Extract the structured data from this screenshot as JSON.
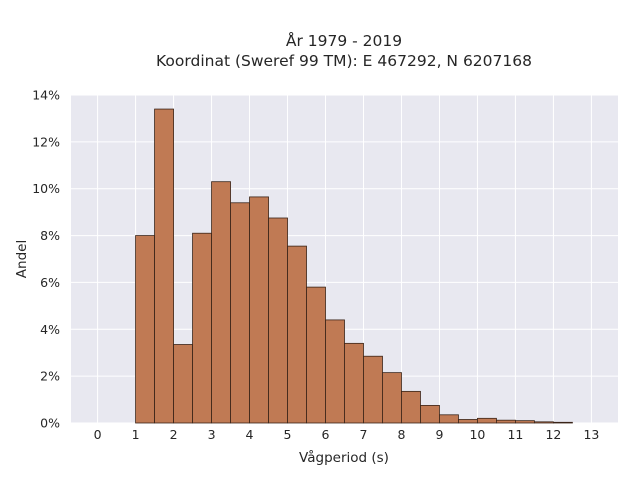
{
  "chart_data": {
    "type": "bar",
    "title": "År 1979 - 2019",
    "subtitle": "Koordinat (Sweref 99 TM): E 467292, N 6207168",
    "xlabel": "Vågperiod (s)",
    "ylabel": "Andel",
    "xlim": [
      -0.7,
      13.7
    ],
    "ylim": [
      0,
      14
    ],
    "x_ticks": [
      0,
      1,
      2,
      3,
      4,
      5,
      6,
      7,
      8,
      9,
      10,
      11,
      12,
      13
    ],
    "y_ticks": [
      0,
      2,
      4,
      6,
      8,
      10,
      12,
      14
    ],
    "y_tick_suffix": "%",
    "grid": true,
    "bin_width": 0.5,
    "bins": [
      {
        "start": 1.0,
        "value": 8.0
      },
      {
        "start": 1.5,
        "value": 13.4
      },
      {
        "start": 2.0,
        "value": 3.35
      },
      {
        "start": 2.5,
        "value": 8.1
      },
      {
        "start": 3.0,
        "value": 10.3
      },
      {
        "start": 3.5,
        "value": 9.4
      },
      {
        "start": 4.0,
        "value": 9.65
      },
      {
        "start": 4.5,
        "value": 8.75
      },
      {
        "start": 5.0,
        "value": 7.55
      },
      {
        "start": 5.5,
        "value": 5.8
      },
      {
        "start": 6.0,
        "value": 4.4
      },
      {
        "start": 6.5,
        "value": 3.4
      },
      {
        "start": 7.0,
        "value": 2.85
      },
      {
        "start": 7.5,
        "value": 2.15
      },
      {
        "start": 8.0,
        "value": 1.35
      },
      {
        "start": 8.5,
        "value": 0.75
      },
      {
        "start": 9.0,
        "value": 0.35
      },
      {
        "start": 9.5,
        "value": 0.15
      },
      {
        "start": 10.0,
        "value": 0.2
      },
      {
        "start": 10.5,
        "value": 0.12
      },
      {
        "start": 11.0,
        "value": 0.1
      },
      {
        "start": 11.5,
        "value": 0.05
      },
      {
        "start": 12.0,
        "value": 0.03
      }
    ],
    "colors": {
      "bar_fill": "#c07a54",
      "bar_edge": "#3a2418",
      "plot_background": "#e8e8f0",
      "grid": "#ffffff"
    }
  }
}
